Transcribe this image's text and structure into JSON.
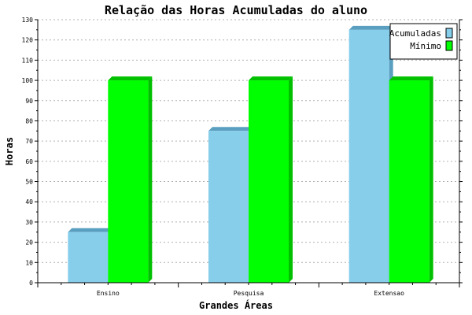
{
  "chart_data": {
    "type": "bar",
    "title": "Relação das Horas Acumuladas do aluno",
    "xlabel": "Grandes Áreas",
    "ylabel": "Horas",
    "categories": [
      "Ensino",
      "Pesquisa",
      "Extensao"
    ],
    "series": [
      {
        "name": "Acumuladas",
        "values": [
          25,
          75,
          125
        ],
        "color": "#87ceeb",
        "shade_color": "#5a9fbf"
      },
      {
        "name": "Mínimo",
        "values": [
          100,
          100,
          100
        ],
        "color": "#00ff00",
        "shade_color": "#00c000"
      }
    ],
    "ylim": [
      0,
      130
    ],
    "yticks": [
      0,
      10,
      20,
      30,
      40,
      50,
      60,
      70,
      80,
      90,
      100,
      110,
      120,
      130
    ],
    "grid": true,
    "legend_position": "top-right"
  }
}
